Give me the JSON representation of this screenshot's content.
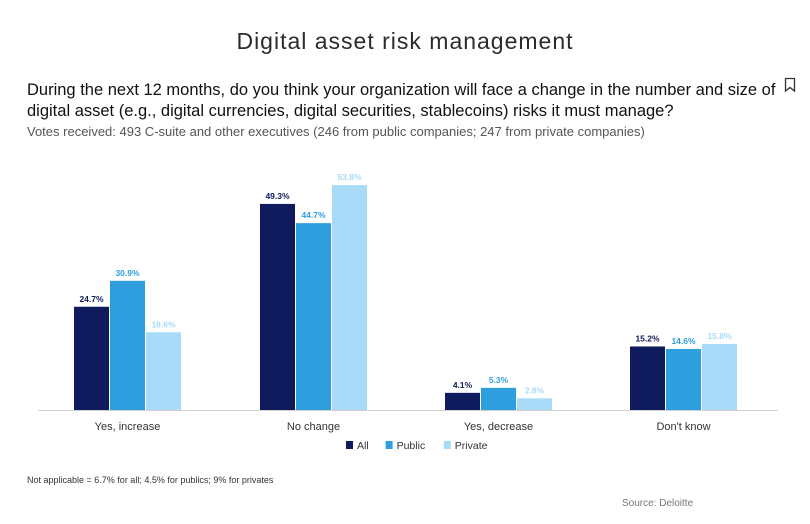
{
  "title": "Digital asset risk management",
  "question": "During the next 12 months, do you think your organization will face a change in the number and size of digital asset (e.g., digital currencies, digital securities, stablecoins) risks it must manage?",
  "votes": "Votes received: 493 C-suite and other executives (246 from public companies; 247 from private companies)",
  "footnote": "Not applicable = 6.7% for all; 4.5% for publics; 9% for privates",
  "source": "Source: Deloitte",
  "icons": {
    "bookmark": "bookmark-icon"
  },
  "chart_data": {
    "type": "bar",
    "categories": [
      "Yes, increase",
      "No change",
      "Yes, decrease",
      "Don't know"
    ],
    "series": [
      {
        "name": "All",
        "color": "#0f1b5c",
        "values": [
          24.7,
          49.3,
          4.1,
          15.2
        ],
        "labels": [
          "24.7%",
          "49.3%",
          "4.1%",
          "15.2%"
        ]
      },
      {
        "name": "Public",
        "color": "#2e9ede",
        "values": [
          30.9,
          44.7,
          5.3,
          14.6
        ],
        "labels": [
          "30.9%",
          "44.7%",
          "5.3%",
          "14.6%"
        ]
      },
      {
        "name": "Private",
        "color": "#a9daf8",
        "values": [
          18.6,
          53.8,
          2.8,
          15.8
        ],
        "labels": [
          "18.6%",
          "53.8%",
          "2.8%",
          "15.8%"
        ]
      }
    ],
    "ylim": [
      0,
      55
    ],
    "legend": "bottom-center",
    "grid": false
  }
}
